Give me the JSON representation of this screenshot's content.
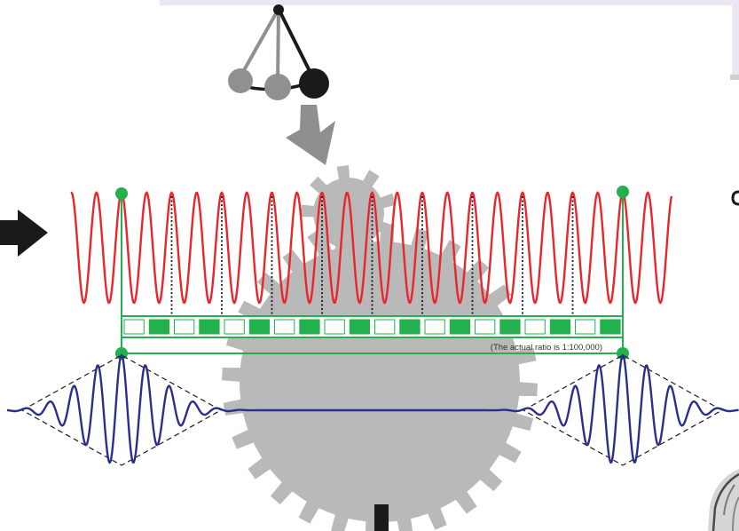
{
  "diagram": {
    "ratio_note": "(The actual ratio is 1:100,000)",
    "icons": {
      "pendulum": "pendulum-icon",
      "down_arrow": "down-arrow-icon",
      "left_arrow": "right-pointing-arrow-icon",
      "small_gear": "small-gear-icon",
      "large_gear": "large-gear-icon",
      "portrait": "portrait-photo-fragment"
    },
    "fast_wave": {
      "color": "#e8262b",
      "cycles_between_markers": 20,
      "marked_every_n_cycles": 2
    },
    "counter_bar": {
      "segments": 20,
      "filled_color": "#22b14c",
      "empty_color": "#ffffff"
    },
    "slow_pulses": {
      "color": "#2b2f8c",
      "pulse_count": 2,
      "envelope_style": "dashed"
    },
    "colors": {
      "accent_green": "#22b14c",
      "wave_red": "#e8262b",
      "wave_blue": "#2b2f8c",
      "gear_gray": "#b9b9b9",
      "arrow_gray": "#8f8f8f",
      "arrow_black": "#1a1a1a",
      "top_panel": "#ece6f3"
    }
  }
}
